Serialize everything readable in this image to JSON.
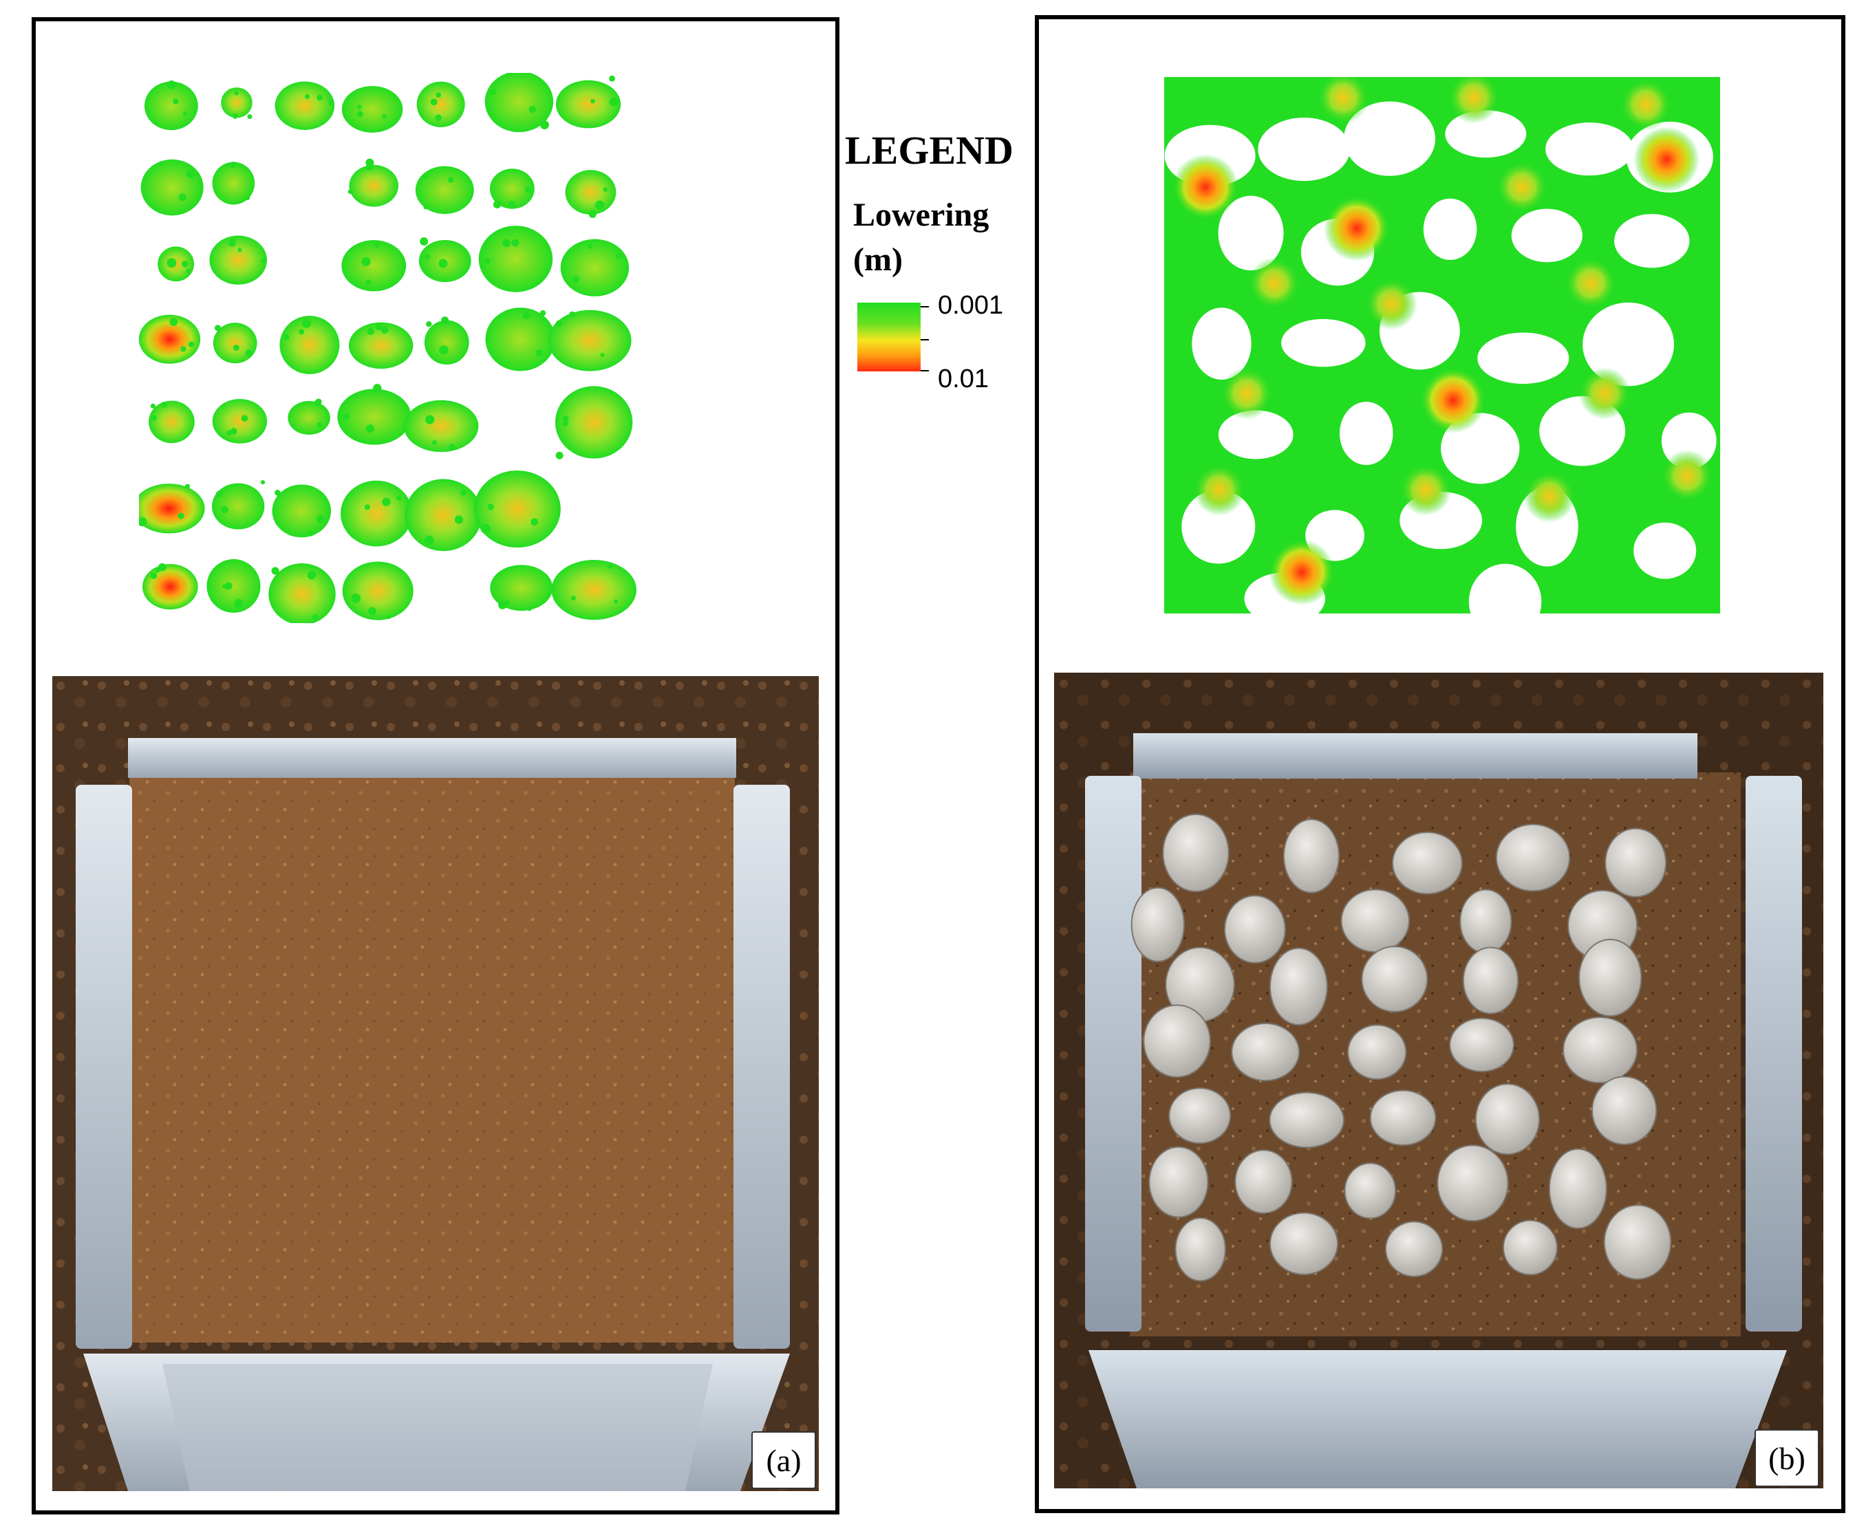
{
  "legend": {
    "title": "LEGEND",
    "variable": "Lowering",
    "unit": "(m)",
    "min_label": "0.001",
    "max_label": "0.01",
    "colors": [
      "#22dd22",
      "#f5e620",
      "#ff2a10"
    ]
  },
  "panels": [
    {
      "label": "(a)"
    },
    {
      "label": "(b)"
    }
  ]
}
